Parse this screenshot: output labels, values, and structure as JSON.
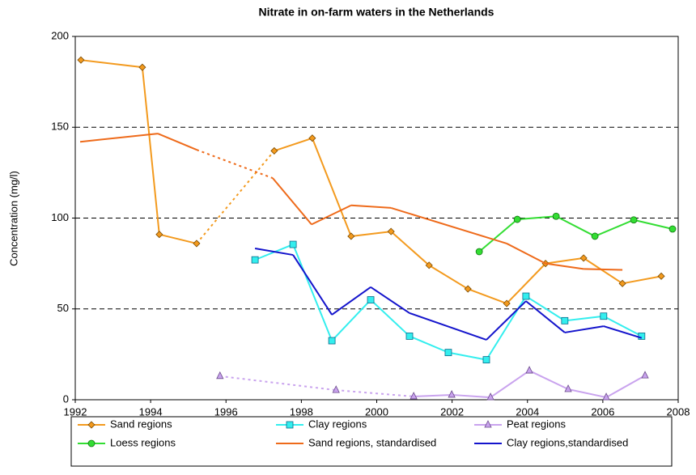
{
  "chart_data": {
    "type": "line",
    "title": "Nitrate in on-farm waters in the Netherlands",
    "y_label": "Concentration (mg/l)",
    "xlim": [
      1992,
      2008
    ],
    "xticks": [
      1992,
      1994,
      1996,
      1998,
      2000,
      2002,
      2004,
      2006,
      2008
    ],
    "ylim": [
      0,
      200
    ],
    "yticks": [
      0,
      50,
      100,
      150,
      200
    ],
    "grid": true,
    "series": [
      {
        "name": "Sand regions",
        "color": "#f39a1e",
        "marker": "diamond",
        "dashed_segments": [
          3
        ],
        "x": [
          1992.15,
          1993.78,
          1994.23,
          1995.22,
          1997.28,
          1998.29,
          1999.32,
          2000.38,
          2001.39,
          2002.42,
          2003.45,
          2004.48,
          2005.49,
          2006.52,
          2007.55
        ],
        "values": [
          187,
          183,
          91,
          86,
          137,
          144,
          90,
          92.6,
          74,
          61,
          53,
          75,
          78,
          64,
          68
        ]
      },
      {
        "name": "Clay regions",
        "color": "#33eeee",
        "marker": "square",
        "dashed_segments": [],
        "x": [
          1996.77,
          1997.78,
          1998.81,
          1999.84,
          2000.87,
          2001.9,
          2002.91,
          2003.96,
          2004.99,
          2006.02,
          2007.03
        ],
        "values": [
          77,
          85.5,
          32.5,
          55,
          35,
          26,
          22,
          57,
          43.5,
          46,
          35
        ]
      },
      {
        "name": "Peat regions",
        "color": "#c9a3ee",
        "marker": "triangle",
        "dashed_segments": [
          0,
          1
        ],
        "x": [
          1995.84,
          1998.92,
          2000.98,
          2001.99,
          2003.02,
          2004.05,
          2005.08,
          2006.09,
          2007.12
        ],
        "values": [
          13,
          5.3,
          1.8,
          2.7,
          1.3,
          16,
          5.8,
          1.3,
          13.3
        ]
      },
      {
        "name": "Loess regions",
        "color": "#33dd33",
        "marker": "circle",
        "dashed_segments": [],
        "x": [
          2002.72,
          2003.73,
          2004.76,
          2005.79,
          2006.82,
          2007.85
        ],
        "values": [
          81.5,
          99.3,
          101,
          90,
          99,
          94
        ]
      },
      {
        "name": "Sand regions, standardised",
        "color": "#ee6a1a",
        "marker": "none",
        "dashed_segments": [
          2
        ],
        "x": [
          1992.13,
          1994.19,
          1995.22,
          1997.24,
          1998.27,
          1999.32,
          2000.38,
          2003.45,
          2004.48,
          2005.49,
          2006.52
        ],
        "values": [
          142,
          146.5,
          137.6,
          122,
          96.5,
          107,
          105.6,
          86,
          75,
          72,
          71.5
        ]
      },
      {
        "name": "Clay regions,standardised",
        "color": "#1414cc",
        "marker": "none",
        "dashed_segments": [],
        "x": [
          1996.77,
          1997.78,
          1998.81,
          1999.84,
          2000.87,
          2002.91,
          2003.96,
          2004.99,
          2006.02,
          2007.03
        ],
        "values": [
          83.3,
          79.7,
          46.8,
          62,
          47.7,
          33,
          54.3,
          37,
          40.5,
          34
        ]
      }
    ]
  }
}
